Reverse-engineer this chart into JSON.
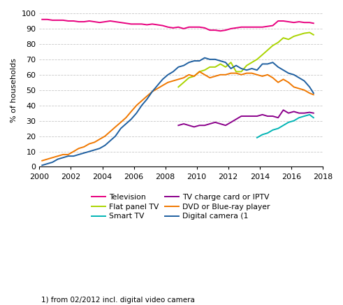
{
  "title": "",
  "ylabel": "% of households",
  "xlabel": "",
  "footnote": "1) from 02/2012 incl. digital video camera",
  "xlim": [
    2000,
    2018
  ],
  "ylim": [
    0,
    100
  ],
  "yticks": [
    0,
    10,
    20,
    30,
    40,
    50,
    60,
    70,
    80,
    90,
    100
  ],
  "xticks": [
    2000,
    2002,
    2004,
    2006,
    2008,
    2010,
    2012,
    2014,
    2016,
    2018
  ],
  "grid_color": "#c8c8c8",
  "series": {
    "Television": {
      "color": "#e8007f",
      "x": [
        2000.17,
        2000.5,
        2000.83,
        2001.17,
        2001.5,
        2001.83,
        2002.17,
        2002.5,
        2002.83,
        2003.17,
        2003.5,
        2003.83,
        2004.17,
        2004.5,
        2004.83,
        2005.17,
        2005.5,
        2005.83,
        2006.17,
        2006.5,
        2006.83,
        2007.17,
        2007.5,
        2007.83,
        2008.17,
        2008.5,
        2008.83,
        2009.17,
        2009.5,
        2009.83,
        2010.17,
        2010.5,
        2010.83,
        2011.17,
        2011.5,
        2011.83,
        2012.17,
        2012.5,
        2012.83,
        2013.17,
        2013.5,
        2013.83,
        2014.17,
        2014.5,
        2014.83,
        2015.17,
        2015.5,
        2015.83,
        2016.17,
        2016.5,
        2016.83,
        2017.17,
        2017.42
      ],
      "y": [
        96,
        96,
        95.5,
        95.5,
        95.5,
        95,
        95,
        94.5,
        94.5,
        95,
        94.5,
        94,
        94.5,
        95,
        94.5,
        94,
        93.5,
        93,
        93,
        93,
        92.5,
        93,
        92.5,
        92,
        91,
        90.5,
        91,
        90,
        91,
        91,
        91,
        90.5,
        89,
        89,
        88.5,
        89,
        90,
        90.5,
        91,
        91,
        91,
        91,
        91,
        91.5,
        92,
        95,
        95,
        94.5,
        94,
        94.5,
        94,
        94,
        93.5
      ]
    },
    "Flat panel TV": {
      "color": "#aad400",
      "x": [
        2008.83,
        2009.17,
        2009.5,
        2009.83,
        2010.17,
        2010.5,
        2010.83,
        2011.17,
        2011.5,
        2011.83,
        2012.17,
        2012.5,
        2012.83,
        2013.17,
        2013.5,
        2013.83,
        2014.17,
        2014.5,
        2014.83,
        2015.17,
        2015.5,
        2015.83,
        2016.17,
        2016.5,
        2016.83,
        2017.17,
        2017.42
      ],
      "y": [
        52,
        55,
        58,
        59,
        62,
        63,
        65,
        65,
        67,
        65,
        68,
        62,
        62,
        66,
        68,
        70,
        73,
        76,
        79,
        81,
        84,
        83,
        85,
        86,
        87,
        87.5,
        86
      ]
    },
    "Smart TV": {
      "color": "#00b4b4",
      "x": [
        2013.83,
        2014.17,
        2014.5,
        2014.83,
        2015.17,
        2015.5,
        2015.83,
        2016.17,
        2016.5,
        2016.83,
        2017.17,
        2017.42
      ],
      "y": [
        19,
        21,
        22,
        24,
        25,
        27,
        29,
        30,
        32,
        33,
        34,
        32
      ]
    },
    "TV charge card or IPTV": {
      "color": "#8b008b",
      "x": [
        2008.83,
        2009.17,
        2009.5,
        2009.83,
        2010.17,
        2010.5,
        2010.83,
        2011.17,
        2011.5,
        2011.83,
        2012.17,
        2012.5,
        2012.83,
        2013.17,
        2013.5,
        2013.83,
        2014.17,
        2014.5,
        2014.83,
        2015.17,
        2015.5,
        2015.83,
        2016.17,
        2016.5,
        2016.83,
        2017.17,
        2017.42
      ],
      "y": [
        27,
        28,
        27,
        26,
        27,
        27,
        28,
        29,
        28,
        27,
        29,
        31,
        33,
        33,
        33,
        33,
        34,
        33,
        33,
        32,
        37,
        35,
        36,
        35,
        35,
        35.5,
        35
      ]
    },
    "DVD or Blue-ray player": {
      "color": "#f07800",
      "x": [
        2000.17,
        2000.5,
        2000.83,
        2001.17,
        2001.5,
        2001.83,
        2002.17,
        2002.5,
        2002.83,
        2003.17,
        2003.5,
        2003.83,
        2004.17,
        2004.5,
        2004.83,
        2005.17,
        2005.5,
        2005.83,
        2006.17,
        2006.5,
        2006.83,
        2007.17,
        2007.5,
        2007.83,
        2008.17,
        2008.5,
        2008.83,
        2009.17,
        2009.5,
        2009.83,
        2010.17,
        2010.5,
        2010.83,
        2011.17,
        2011.5,
        2011.83,
        2012.17,
        2012.5,
        2012.83,
        2013.17,
        2013.5,
        2013.83,
        2014.17,
        2014.5,
        2014.83,
        2015.17,
        2015.5,
        2015.83,
        2016.17,
        2016.5,
        2016.83,
        2017.17,
        2017.42
      ],
      "y": [
        4,
        5,
        6,
        7,
        8,
        8,
        10,
        12,
        13,
        15,
        16,
        18,
        20,
        23,
        26,
        29,
        32,
        36,
        40,
        43,
        46,
        49,
        51,
        53,
        55,
        56,
        57,
        58,
        60,
        59,
        62,
        60,
        58,
        59,
        60,
        60,
        61,
        61,
        60,
        61,
        61,
        60,
        59,
        60,
        58,
        55,
        57,
        55,
        52,
        51,
        50,
        48,
        47
      ]
    },
    "Digital camera": {
      "color": "#1e5fa0",
      "x": [
        2000.17,
        2000.5,
        2000.83,
        2001.17,
        2001.5,
        2001.83,
        2002.17,
        2002.5,
        2002.83,
        2003.17,
        2003.5,
        2003.83,
        2004.17,
        2004.5,
        2004.83,
        2005.17,
        2005.5,
        2005.83,
        2006.17,
        2006.5,
        2006.83,
        2007.17,
        2007.5,
        2007.83,
        2008.17,
        2008.5,
        2008.83,
        2009.17,
        2009.5,
        2009.83,
        2010.17,
        2010.5,
        2010.83,
        2011.17,
        2011.5,
        2011.83,
        2012.17,
        2012.5,
        2012.83,
        2013.17,
        2013.5,
        2013.83,
        2014.17,
        2014.5,
        2014.83,
        2015.17,
        2015.5,
        2015.83,
        2016.17,
        2016.5,
        2016.83,
        2017.17,
        2017.42
      ],
      "y": [
        1,
        2,
        3,
        5,
        6,
        7,
        7,
        8,
        9,
        10,
        11,
        12,
        14,
        17,
        20,
        25,
        28,
        31,
        35,
        40,
        44,
        49,
        53,
        57,
        60,
        62,
        65,
        66,
        68,
        69,
        69,
        71,
        70,
        70,
        69,
        68,
        64,
        66,
        64,
        63,
        64,
        63,
        67,
        67,
        68,
        65,
        63,
        61,
        60,
        58,
        56,
        52,
        48
      ]
    }
  }
}
